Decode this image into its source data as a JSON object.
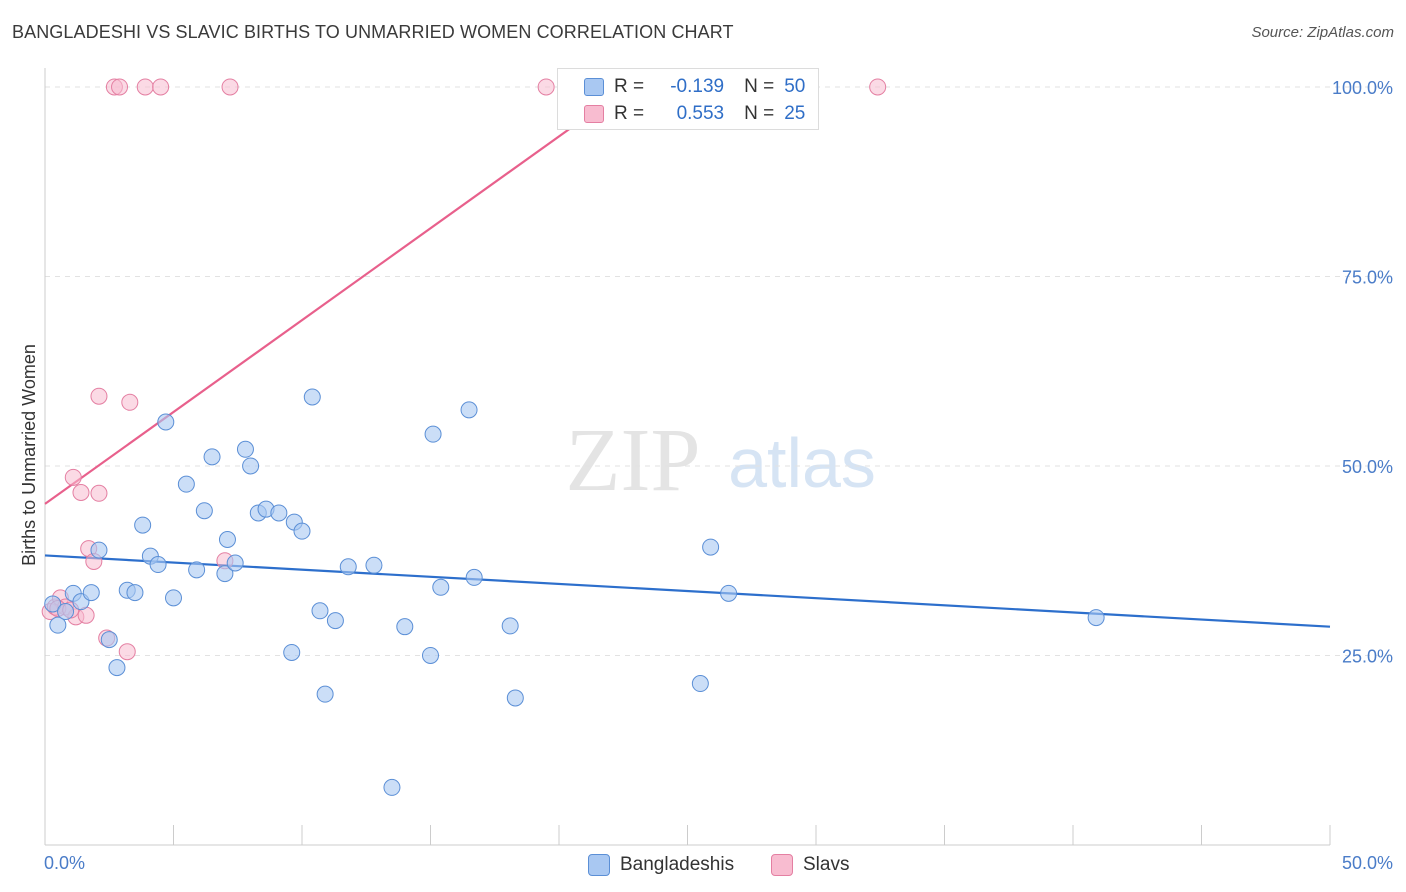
{
  "header": {
    "title": "BANGLADESHI VS SLAVIC BIRTHS TO UNMARRIED WOMEN CORRELATION CHART",
    "source": "Source: ZipAtlas.com"
  },
  "watermark": {
    "zip": "ZIP",
    "atlas": "atlas"
  },
  "legend": {
    "rows": [
      {
        "r_label": "R =",
        "r_value": "-0.139",
        "n_label": "N =",
        "n_value": "50",
        "color": "#a9c8f2",
        "edge": "#5b8fd6"
      },
      {
        "r_label": "R =",
        "r_value": "0.553",
        "n_label": "N =",
        "n_value": "25",
        "color": "#f8bcd0",
        "edge": "#e47fa2"
      }
    ]
  },
  "bottom_legend": {
    "items": [
      {
        "label": "Bangladeshis",
        "color": "#a9c8f2",
        "edge": "#5b8fd6"
      },
      {
        "label": "Slavs",
        "color": "#f8bcd0",
        "edge": "#e47fa2"
      }
    ]
  },
  "colors": {
    "blue_fill": "#a9c8f2",
    "blue_edge": "#5b8fd6",
    "blue_line": "#2d6fcc",
    "pink_fill": "#f8bcd0",
    "pink_edge": "#e47fa2",
    "pink_line": "#e8608c",
    "grid": "#e2e2e2",
    "tick_text": "#4a7cc8"
  },
  "chart_data": {
    "type": "scatter",
    "title": "BANGLADESHI VS SLAVIC BIRTHS TO UNMARRIED WOMEN CORRELATION CHART",
    "xlabel": "",
    "ylabel": "Births to Unmarried Women",
    "xlim": [
      0,
      50
    ],
    "ylim": [
      0,
      102.5
    ],
    "x_tick_labels": [
      "0.0%",
      "50.0%"
    ],
    "y_ticks": [
      25,
      50,
      75,
      100
    ],
    "y_tick_labels": [
      "25.0%",
      "50.0%",
      "75.0%",
      "100.0%"
    ],
    "grid": true,
    "series": [
      {
        "name": "Bangladeshis",
        "r": -0.139,
        "n": 50,
        "trend": {
          "x": [
            0,
            50
          ],
          "y": [
            38.2,
            28.8
          ]
        },
        "points": [
          [
            0.3,
            31.8
          ],
          [
            0.5,
            29.0
          ],
          [
            0.8,
            30.8
          ],
          [
            1.1,
            33.2
          ],
          [
            1.4,
            32.1
          ],
          [
            1.8,
            33.3
          ],
          [
            2.1,
            38.9
          ],
          [
            2.5,
            27.1
          ],
          [
            2.8,
            23.4
          ],
          [
            3.2,
            33.6
          ],
          [
            3.5,
            33.3
          ],
          [
            3.8,
            42.2
          ],
          [
            4.1,
            38.1
          ],
          [
            4.4,
            37.0
          ],
          [
            4.7,
            55.8
          ],
          [
            5.0,
            32.6
          ],
          [
            5.5,
            47.6
          ],
          [
            5.9,
            36.3
          ],
          [
            6.2,
            44.1
          ],
          [
            6.5,
            51.2
          ],
          [
            7.0,
            35.8
          ],
          [
            7.1,
            40.3
          ],
          [
            7.4,
            37.2
          ],
          [
            7.8,
            52.2
          ],
          [
            8.0,
            50.0
          ],
          [
            8.3,
            43.8
          ],
          [
            8.6,
            44.3
          ],
          [
            9.1,
            43.8
          ],
          [
            9.6,
            25.4
          ],
          [
            9.7,
            42.6
          ],
          [
            10.0,
            41.4
          ],
          [
            10.4,
            59.1
          ],
          [
            10.7,
            30.9
          ],
          [
            10.9,
            19.9
          ],
          [
            11.3,
            29.6
          ],
          [
            11.8,
            36.7
          ],
          [
            12.8,
            36.9
          ],
          [
            13.5,
            7.6
          ],
          [
            14.0,
            28.8
          ],
          [
            15.0,
            25.0
          ],
          [
            15.1,
            54.2
          ],
          [
            15.4,
            34.0
          ],
          [
            16.5,
            57.4
          ],
          [
            16.7,
            35.3
          ],
          [
            18.1,
            28.9
          ],
          [
            18.3,
            19.4
          ],
          [
            25.5,
            21.3
          ],
          [
            25.9,
            39.3
          ],
          [
            26.6,
            33.2
          ],
          [
            40.9,
            30.0
          ]
        ]
      },
      {
        "name": "Slavs",
        "r": 0.553,
        "n": 25,
        "trend": {
          "x": [
            0,
            23.6
          ],
          "y": [
            45.0,
            102.2
          ]
        },
        "points": [
          [
            0.2,
            30.8
          ],
          [
            0.4,
            31.4
          ],
          [
            0.6,
            32.6
          ],
          [
            0.8,
            31.4
          ],
          [
            1.1,
            48.5
          ],
          [
            1.2,
            30.1
          ],
          [
            1.4,
            46.5
          ],
          [
            1.6,
            30.3
          ],
          [
            1.7,
            39.1
          ],
          [
            1.9,
            37.4
          ],
          [
            2.1,
            46.4
          ],
          [
            2.1,
            59.2
          ],
          [
            2.4,
            27.3
          ],
          [
            2.7,
            100.0
          ],
          [
            2.9,
            100.0
          ],
          [
            3.2,
            25.5
          ],
          [
            3.3,
            58.4
          ],
          [
            3.9,
            100.0
          ],
          [
            4.5,
            100.0
          ],
          [
            7.0,
            37.5
          ],
          [
            7.2,
            100.0
          ],
          [
            19.5,
            100.0
          ],
          [
            32.4,
            100.0
          ],
          [
            0.5,
            31.2
          ],
          [
            1.0,
            31.0
          ]
        ]
      }
    ]
  }
}
